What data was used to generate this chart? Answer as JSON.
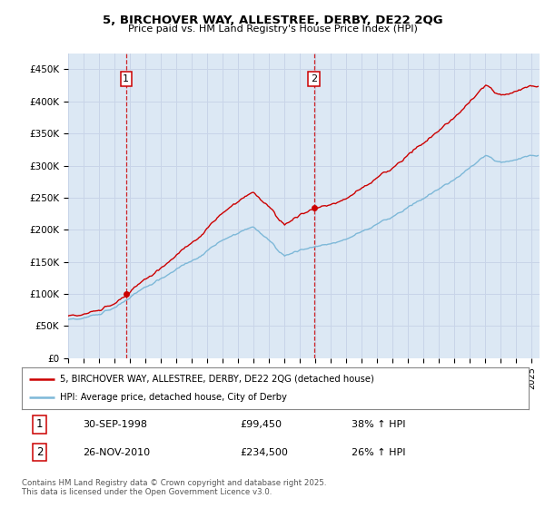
{
  "title_line1": "5, BIRCHOVER WAY, ALLESTREE, DERBY, DE22 2QG",
  "title_line2": "Price paid vs. HM Land Registry's House Price Index (HPI)",
  "ylabel_ticks": [
    "£0",
    "£50K",
    "£100K",
    "£150K",
    "£200K",
    "£250K",
    "£300K",
    "£350K",
    "£400K",
    "£450K"
  ],
  "ytick_values": [
    0,
    50000,
    100000,
    150000,
    200000,
    250000,
    300000,
    350000,
    400000,
    450000
  ],
  "ylim": [
    0,
    475000
  ],
  "xlim_start": 1995.0,
  "xlim_end": 2025.5,
  "sale1_date": 1998.75,
  "sale1_price": 99450,
  "sale1_label": "1",
  "sale2_date": 2010.9,
  "sale2_price": 234500,
  "sale2_label": "2",
  "hpi_color": "#7db8d8",
  "price_color": "#cc0000",
  "grid_color": "#c8d4e8",
  "bg_color": "#dce8f4",
  "legend_line1": "5, BIRCHOVER WAY, ALLESTREE, DERBY, DE22 2QG (detached house)",
  "legend_line2": "HPI: Average price, detached house, City of Derby",
  "annotation1_date": "30-SEP-1998",
  "annotation1_price": "£99,450",
  "annotation1_hpi": "38% ↑ HPI",
  "annotation2_date": "26-NOV-2010",
  "annotation2_price": "£234,500",
  "annotation2_hpi": "26% ↑ HPI",
  "footnote": "Contains HM Land Registry data © Crown copyright and database right 2025.\nThis data is licensed under the Open Government Licence v3.0."
}
